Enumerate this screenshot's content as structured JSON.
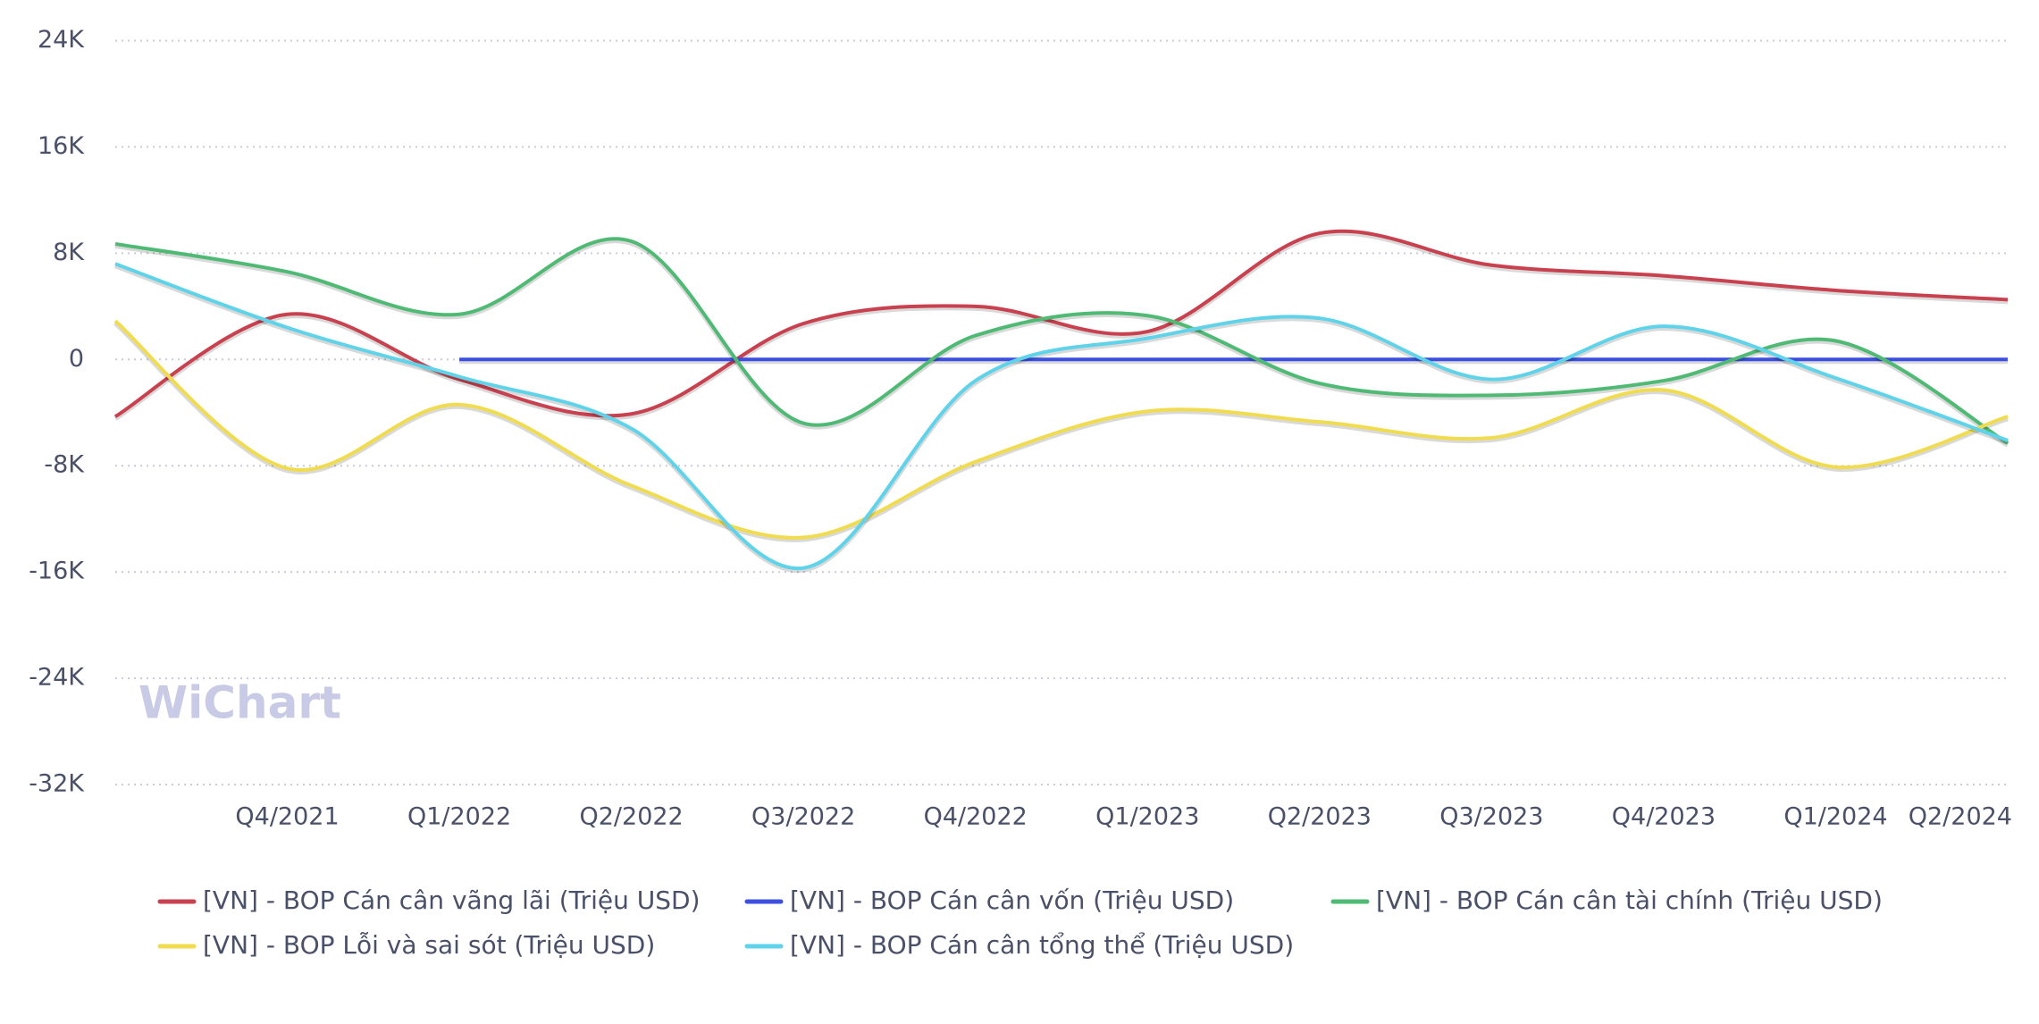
{
  "chart_data": {
    "type": "line",
    "categories": [
      null,
      "Q4/2021",
      "Q1/2022",
      "Q2/2022",
      "Q3/2022",
      "Q4/2022",
      "Q1/2023",
      "Q2/2023",
      "Q3/2023",
      "Q4/2023",
      "Q1/2024",
      "Q2/2024"
    ],
    "ylim": [
      -32000,
      24000
    ],
    "yticks": [
      {
        "value": -32000,
        "label": "-32K"
      },
      {
        "value": -24000,
        "label": "-24K"
      },
      {
        "value": -16000,
        "label": "-16K"
      },
      {
        "value": -8000,
        "label": "-8K"
      },
      0,
      {
        "value": 8000,
        "label": "8K"
      },
      {
        "value": 16000,
        "label": "16K"
      },
      {
        "value": 24000,
        "label": "24K"
      }
    ],
    "grid": true,
    "smooth": true,
    "watermark": "WiChart",
    "series": [
      {
        "name": "[VN] - BOP Cán cân vãng lãi (Triệu USD)",
        "color": "#c9414f",
        "values": [
          -4300,
          3400,
          -1500,
          -4100,
          2700,
          4000,
          2100,
          9500,
          7100,
          6300,
          5200,
          4500
        ]
      },
      {
        "name": "[VN] - BOP Cán cân vốn (Triệu USD)",
        "color": "#3c4fe0",
        "values": [
          null,
          null,
          0,
          0,
          0,
          0,
          0,
          0,
          0,
          0,
          0,
          0
        ]
      },
      {
        "name": "[VN] - BOP Cán cân tài chính (Triệu USD)",
        "color": "#4fba74",
        "values": [
          8700,
          6600,
          3400,
          8900,
          -4800,
          1800,
          3300,
          -1800,
          -2700,
          -1600,
          1400,
          -6300
        ]
      },
      {
        "name": "[VN] - BOP Lỗi và sai sót (Triệu USD)",
        "color": "#f0dc4e",
        "values": [
          2900,
          -8200,
          -3400,
          -9500,
          -13400,
          -7700,
          -3900,
          -4700,
          -5900,
          -2300,
          -8100,
          -4300
        ]
      },
      {
        "name": "[VN] - BOP Cán cân tổng thể (Triệu USD)",
        "color": "#5fd3ea",
        "values": [
          7200,
          2400,
          -1300,
          -5200,
          -15700,
          -1600,
          1600,
          3100,
          -1500,
          2500,
          -1400,
          -6100
        ]
      }
    ]
  }
}
